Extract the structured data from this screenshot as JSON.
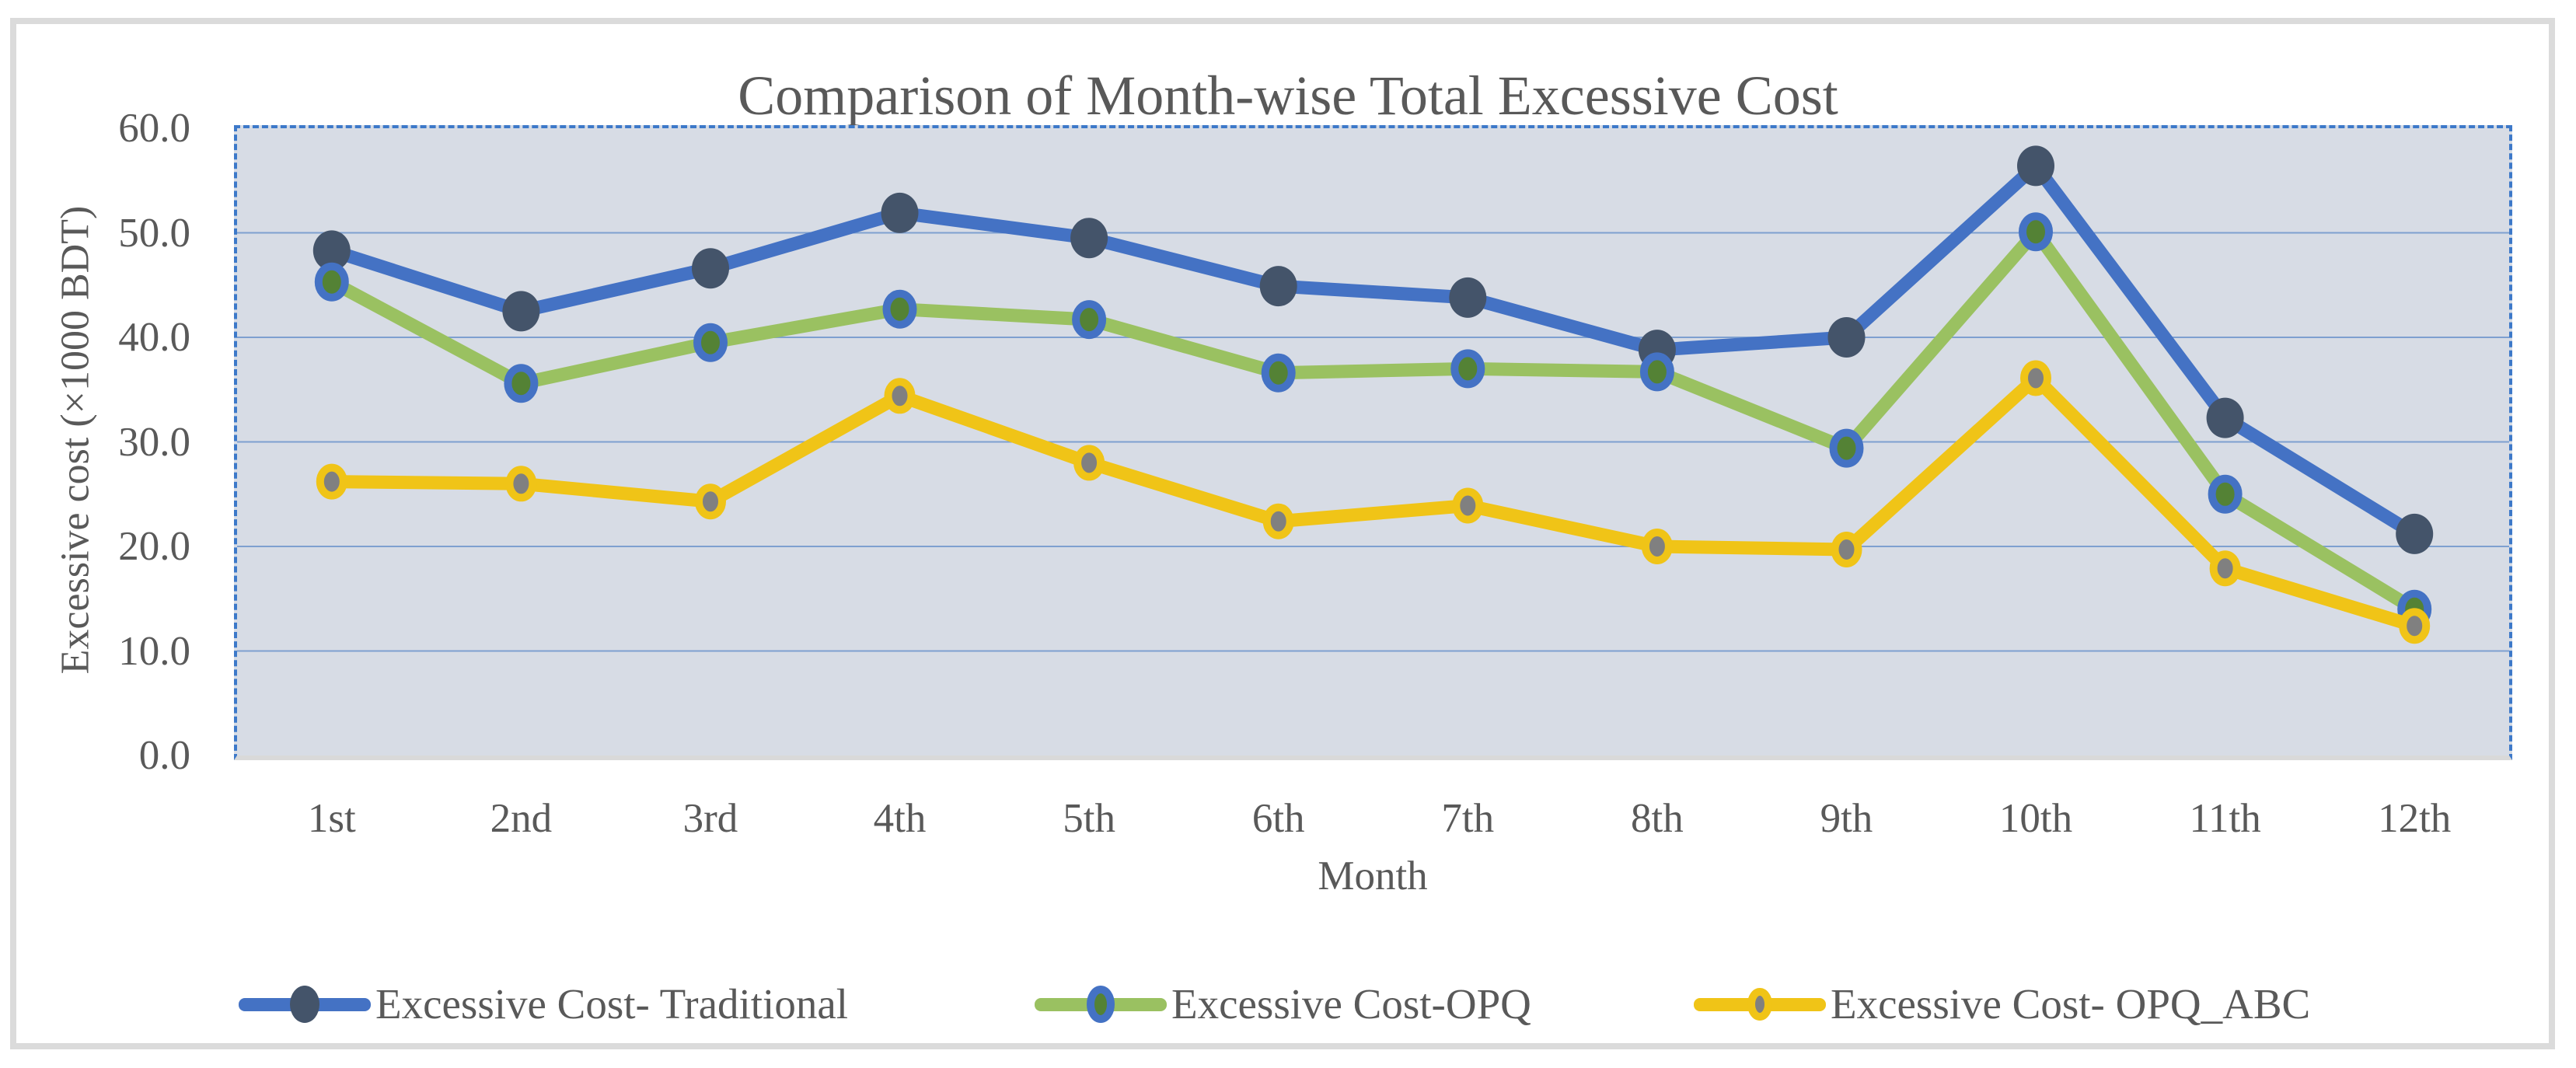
{
  "figure": {
    "title": "Comparison of Month-wise Total Excessive Cost"
  },
  "style": {
    "text_color": "#595959",
    "plot_background": "#D7DCE5",
    "plot_border_color": "#3D79C9",
    "gridline_color": "#7EA0D0",
    "axis_bottom_color": "#D9D9D9",
    "frame_color": "#DBDBDB"
  },
  "chart_data": {
    "type": "line",
    "title": "Comparison of Month-wise Total Excessive Cost",
    "xlabel": "Month",
    "ylabel": "Excessive cost (×1000 BDT)",
    "categories": [
      "1st",
      "2nd",
      "3rd",
      "4th",
      "5th",
      "6th",
      "7th",
      "8th",
      "9th",
      "10th",
      "11th",
      "12th"
    ],
    "ylim": [
      0,
      60
    ],
    "ytick_labels": [
      "0.0",
      "10.0",
      "20.0",
      "30.0",
      "40.0",
      "50.0",
      "60.0"
    ],
    "grid": true,
    "legend_position": "bottom",
    "series": [
      {
        "name": "Excessive Cost- Traditional",
        "values": [
          48.3,
          42.5,
          46.6,
          51.9,
          49.5,
          44.9,
          43.8,
          38.8,
          40.0,
          56.4,
          32.3,
          21.2
        ],
        "line_color": "#4472C4",
        "line_width": 17,
        "marker_fill": "#44546A",
        "marker_stroke": "#44546A",
        "marker_stroke_width": 0,
        "marker_rx": 24,
        "marker_ry": 26,
        "legend_rx": 19,
        "legend_ry": 24
      },
      {
        "name": "Excessive Cost-OPQ",
        "values": [
          45.3,
          35.6,
          39.5,
          42.7,
          41.7,
          36.6,
          37.0,
          36.7,
          29.4,
          50.1,
          25.0,
          14.0
        ],
        "line_color": "#9AC161",
        "line_width": 17,
        "marker_fill": "#548235",
        "marker_stroke": "#4472C4",
        "marker_stroke_width": 10,
        "marker_rx": 17,
        "marker_ry": 20,
        "legend_rx": 13,
        "legend_ry": 19
      },
      {
        "name": "Excessive Cost- OPQ_ABC",
        "values": [
          26.2,
          26.0,
          24.3,
          34.4,
          28.0,
          22.4,
          23.9,
          20.0,
          19.7,
          36.1,
          17.9,
          12.4
        ],
        "line_color": "#F0C417",
        "line_width": 17,
        "marker_fill": "#808080",
        "marker_stroke": "#F0C417",
        "marker_stroke_width": 10,
        "marker_rx": 15,
        "marker_ry": 18,
        "legend_rx": 11,
        "legend_ry": 16
      }
    ]
  },
  "legend_item_lefts": [
    307,
    1331,
    2179
  ]
}
